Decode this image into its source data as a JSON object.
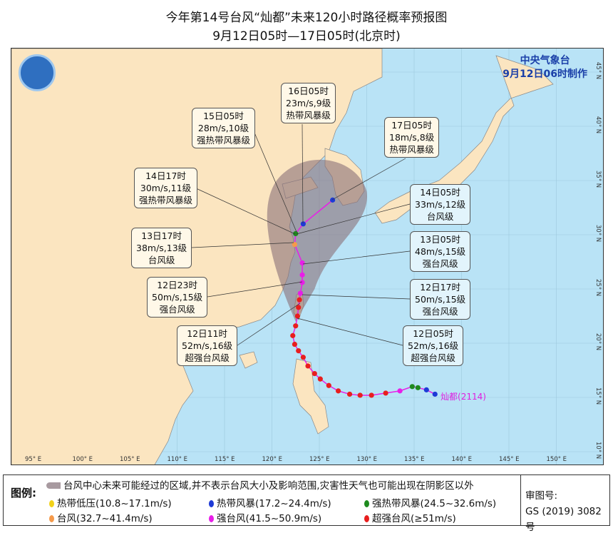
{
  "title": "今年第14号台风“灿都”未来120小时路径概率预报图",
  "subtitle": "9月12日05时—17日05时(北京时)",
  "agency": {
    "name": "中央气象台",
    "made": "9月12日06时制作"
  },
  "typhoon": {
    "name": "灿都",
    "code": "(2114)"
  },
  "lon_ticks": [
    "95° E",
    "100° E",
    "105° E",
    "110° E",
    "115° E",
    "120° E",
    "125° E",
    "130° E",
    "135° E",
    "140° E",
    "145° E",
    "150° E"
  ],
  "lat_ticks": [
    "45° N",
    "40° N",
    "35° N",
    "30° N",
    "25° N",
    "20° N",
    "15° N",
    "10° N"
  ],
  "track": [
    {
      "lon": 137.2,
      "lat": 15.3,
      "cat": "ts"
    },
    {
      "lon": 136.3,
      "lat": 15.7,
      "cat": "ts"
    },
    {
      "lon": 135.4,
      "lat": 15.9,
      "cat": "sts"
    },
    {
      "lon": 134.8,
      "lat": 16.0,
      "cat": "sts"
    },
    {
      "lon": 133.5,
      "lat": 15.6,
      "cat": "sty"
    },
    {
      "lon": 132.0,
      "lat": 15.4,
      "cat": "super"
    },
    {
      "lon": 130.5,
      "lat": 15.2,
      "cat": "super"
    },
    {
      "lon": 129.3,
      "lat": 15.2,
      "cat": "super"
    },
    {
      "lon": 128.2,
      "lat": 15.3,
      "cat": "super"
    },
    {
      "lon": 127.0,
      "lat": 15.6,
      "cat": "super"
    },
    {
      "lon": 126.0,
      "lat": 16.1,
      "cat": "super"
    },
    {
      "lon": 125.1,
      "lat": 16.7,
      "cat": "super"
    },
    {
      "lon": 124.5,
      "lat": 17.2,
      "cat": "super"
    },
    {
      "lon": 123.8,
      "lat": 17.9,
      "cat": "super"
    },
    {
      "lon": 123.3,
      "lat": 18.7,
      "cat": "super"
    },
    {
      "lon": 122.8,
      "lat": 19.3,
      "cat": "super"
    },
    {
      "lon": 122.4,
      "lat": 19.9,
      "cat": "super"
    },
    {
      "lon": 122.2,
      "lat": 20.7,
      "cat": "super"
    },
    {
      "lon": 122.5,
      "lat": 21.6,
      "cat": "super"
    },
    {
      "lon": 122.7,
      "lat": 22.5,
      "cat": "super"
    },
    {
      "lon": 122.8,
      "lat": 23.3,
      "cat": "super"
    },
    {
      "lon": 122.9,
      "lat": 24.0,
      "cat": "super"
    },
    {
      "lon": 123.0,
      "lat": 24.6,
      "cat": "sty"
    },
    {
      "lon": 123.2,
      "lat": 25.6,
      "cat": "sty"
    },
    {
      "lon": 123.2,
      "lat": 26.3,
      "cat": "sty"
    },
    {
      "lon": 123.2,
      "lat": 27.4,
      "cat": "sty"
    },
    {
      "lon": 122.4,
      "lat": 29.1,
      "cat": "ty"
    },
    {
      "lon": 122.5,
      "lat": 30.1,
      "cat": "sts"
    },
    {
      "lon": 123.3,
      "lat": 31.0,
      "cat": "ts"
    },
    {
      "lon": 126.4,
      "lat": 33.2,
      "cat": "ts"
    }
  ],
  "labels": [
    {
      "time": "16日05时",
      "wind": "23m/s,9级",
      "level": "热带风暴级"
    },
    {
      "time": "15日05时",
      "wind": "28m/s,10级",
      "level": "强热带风暴级"
    },
    {
      "time": "17日05时",
      "wind": "18m/s,8级",
      "level": "热带风暴级"
    },
    {
      "time": "14日17时",
      "wind": "30m/s,11级",
      "level": "强热带风暴级"
    },
    {
      "time": "14日05时",
      "wind": "33m/s,12级",
      "level": "台风级"
    },
    {
      "time": "13日17时",
      "wind": "38m/s,13级",
      "level": "台风级"
    },
    {
      "time": "13日05时",
      "wind": "48m/s,15级",
      "level": "强台风级"
    },
    {
      "time": "12日23时",
      "wind": "50m/s,15级",
      "level": "强台风级"
    },
    {
      "time": "12日17时",
      "wind": "50m/s,15级",
      "level": "强台风级"
    },
    {
      "time": "12日11时",
      "wind": "52m/s,16级",
      "level": "超强台风级"
    },
    {
      "time": "12日05时",
      "wind": "52m/s,16级",
      "level": "超强台风级"
    }
  ],
  "legend": {
    "title": "图例:",
    "cone": "台风中心未来可能经过的区域,并不表示台风大小及影响范围,灾害性天气也可能出现在阴影区以外",
    "items": [
      {
        "label": "热带低压(10.8~17.1m/s)",
        "color": "#f2d21a"
      },
      {
        "label": "热带风暴(17.2~24.4m/s)",
        "color": "#1e3ad6"
      },
      {
        "label": "强热带风暴(24.5~32.6m/s)",
        "color": "#1e8a1e"
      },
      {
        "label": "台风(32.7~41.4m/s)",
        "color": "#f59a4a"
      },
      {
        "label": "强台风(41.5~50.9m/s)",
        "color": "#e81ee8"
      },
      {
        "label": "超强台风(≥51m/s)",
        "color": "#e81e1e"
      }
    ],
    "review_label": "审图号:",
    "review_no": "GS (2019) 3082号"
  },
  "colors": {
    "ts": "#1e3ad6",
    "sts": "#1e8a1e",
    "ty": "#f59a4a",
    "sty": "#e81ee8",
    "super": "#e81e1e",
    "track": "#e81ee8",
    "land": "#fbe5c0",
    "sea": "#b9e3f6",
    "cone": "#8a6f78"
  }
}
